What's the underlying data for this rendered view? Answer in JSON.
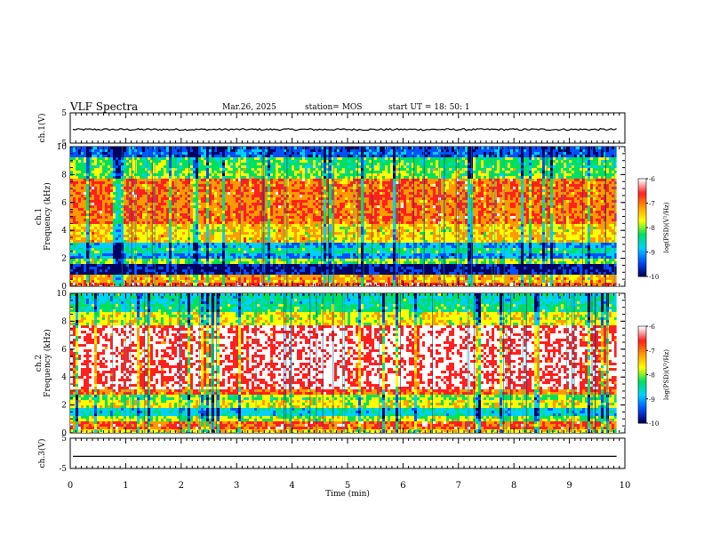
{
  "header": {
    "title": "VLF Spectra",
    "date": "Mar.26, 2025",
    "station": "station= MOS",
    "start": "start  UT =   18: 50: 1"
  },
  "chart_data": {
    "type": "heatmap",
    "colors": {
      "colormap": [
        "#ffffff",
        "#ff2020",
        "#ff9a00",
        "#ffff00",
        "#00e060",
        "#00d0ff",
        "#0050ff",
        "#000060"
      ],
      "trace": "#000000"
    },
    "x": {
      "label": "Time  (min)",
      "range": [
        0,
        10
      ],
      "ticks": [
        "0",
        "1",
        "2",
        "3",
        "4",
        "5",
        "6",
        "7",
        "8",
        "9",
        "10"
      ]
    },
    "panels": [
      {
        "id": "ch1-waveform",
        "type": "line",
        "ylabel": "ch.1(V)",
        "yrange": [
          -5,
          5
        ],
        "yticks": [
          "5",
          "-5"
        ],
        "level": -0.5,
        "end_min": 9.85
      },
      {
        "id": "ch1-spectrogram",
        "type": "heatmap",
        "ylabel": "ch.1\nFrequency  (kHz)",
        "yrange": [
          0,
          10
        ],
        "yticks": [
          "0",
          "2",
          "4",
          "6",
          "8",
          "10"
        ],
        "end_min": 9.85,
        "colorbar": {
          "label": "log(PSD)(V²/Hz)",
          "range": [
            -10,
            -6
          ],
          "ticks": [
            "-6",
            "-7",
            "-8",
            "-9",
            "-10"
          ]
        }
      },
      {
        "id": "ch2-spectrogram",
        "type": "heatmap",
        "ylabel": "ch.2\nFrequency  (kHz)",
        "yrange": [
          0,
          10
        ],
        "yticks": [
          "0",
          "2",
          "4",
          "6",
          "8",
          "10"
        ],
        "end_min": 9.85,
        "colorbar": {
          "label": "log(PSD)(V²/Hz)",
          "range": [
            -10,
            -6
          ],
          "ticks": [
            "-6",
            "-7",
            "-8",
            "-9",
            "-10"
          ]
        }
      },
      {
        "id": "ch3-waveform",
        "type": "line",
        "ylabel": "ch.3(V)",
        "yrange": [
          -5,
          5
        ],
        "yticks": [
          "5",
          "-5"
        ],
        "level": -1.0,
        "end_min": 9.85
      }
    ]
  }
}
